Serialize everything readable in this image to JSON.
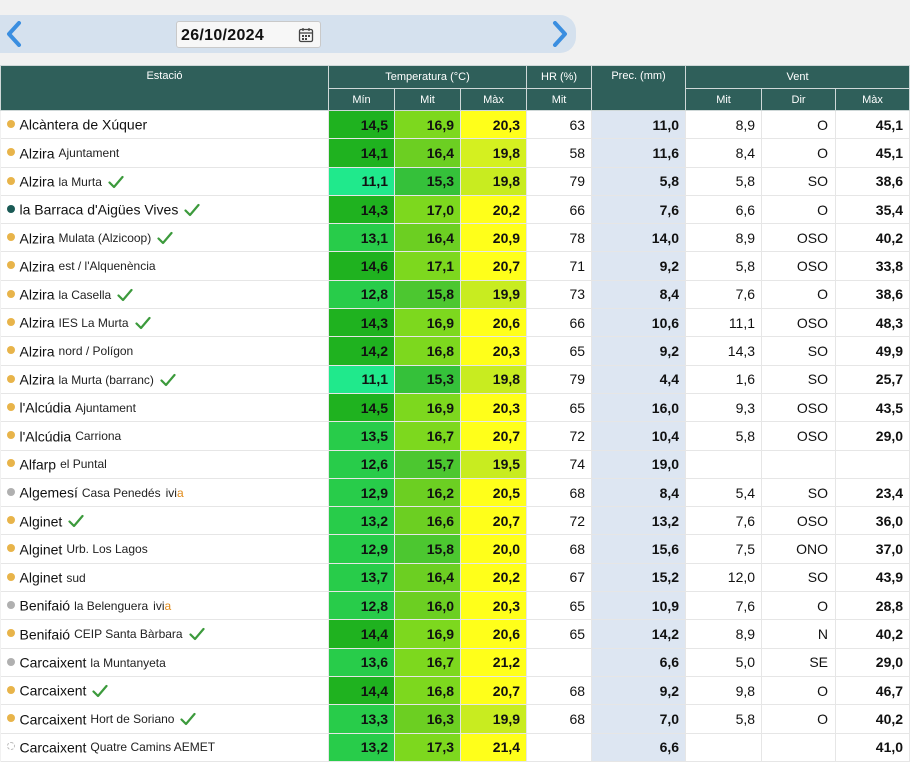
{
  "date_nav": {
    "date": "26/10/2024"
  },
  "colors": {
    "header_bg": "#2f5f5a",
    "precip_bg": "#dde6f2",
    "dot_orange": "#e8b44a",
    "dot_teal": "#1a5a55",
    "dot_gray": "#b0b0b0",
    "check": "#3c9a3c"
  },
  "headers": {
    "station": "Estació",
    "temperature": "Temperatura (°C)",
    "hr": "HR (%)",
    "prec": "Prec. (mm)",
    "wind": "Vent",
    "tmin": "Mín",
    "tmit": "Mit",
    "tmax": "Màx",
    "hr_mit": "Mit",
    "wind_mit": "Mit",
    "wind_dir": "Dir",
    "wind_max": "Màx"
  },
  "stations": [
    {
      "name": "Alcàntera de Xúquer",
      "sub": "",
      "dot": "orange",
      "check": false,
      "ivia": false,
      "tmin": "14,5",
      "tmit": "16,9",
      "tmax": "20,3",
      "cmin": "#1fb21f",
      "cmit": "#7dd81e",
      "cmax": "#ffff1a",
      "hr": "63",
      "prec": "11,0",
      "wmit": "8,9",
      "wdir": "O",
      "wmax": "45,1"
    },
    {
      "name": "Alzira",
      "sub": "Ajuntament",
      "dot": "orange",
      "check": false,
      "ivia": false,
      "tmin": "14,1",
      "tmit": "16,4",
      "tmax": "19,8",
      "cmin": "#1fb21f",
      "cmit": "#6ccf22",
      "cmax": "#d4f020",
      "hr": "58",
      "prec": "11,6",
      "wmit": "8,4",
      "wdir": "O",
      "wmax": "45,1"
    },
    {
      "name": "Alzira",
      "sub": "la Murta",
      "dot": "orange",
      "check": true,
      "ivia": false,
      "tmin": "11,1",
      "tmit": "15,3",
      "tmax": "19,8",
      "cmin": "#20e98c",
      "cmit": "#35c13a",
      "cmax": "#c8ec20",
      "hr": "79",
      "prec": "5,8",
      "wmit": "5,8",
      "wdir": "SO",
      "wmax": "38,6"
    },
    {
      "name": "la Barraca d'Aigües Vives",
      "sub": "",
      "dot": "teal",
      "check": true,
      "ivia": false,
      "tmin": "14,3",
      "tmit": "17,0",
      "tmax": "20,2",
      "cmin": "#1fb21f",
      "cmit": "#7dd81e",
      "cmax": "#ffff1a",
      "hr": "66",
      "prec": "7,6",
      "wmit": "6,6",
      "wdir": "O",
      "wmax": "35,4"
    },
    {
      "name": "Alzira",
      "sub": "Mulata (Alzicoop)",
      "dot": "orange",
      "check": true,
      "ivia": false,
      "tmin": "13,1",
      "tmit": "16,4",
      "tmax": "20,9",
      "cmin": "#28cc4a",
      "cmit": "#6ccf22",
      "cmax": "#ffff1a",
      "hr": "78",
      "prec": "14,0",
      "wmit": "8,9",
      "wdir": "OSO",
      "wmax": "40,2"
    },
    {
      "name": "Alzira",
      "sub": "est / l'Alquenència",
      "dot": "orange",
      "check": false,
      "ivia": false,
      "tmin": "14,6",
      "tmit": "17,1",
      "tmax": "20,7",
      "cmin": "#1fb21f",
      "cmit": "#7dd81e",
      "cmax": "#ffff1a",
      "hr": "71",
      "prec": "9,2",
      "wmit": "5,8",
      "wdir": "OSO",
      "wmax": "33,8"
    },
    {
      "name": "Alzira",
      "sub": "la Casella",
      "dot": "orange",
      "check": true,
      "ivia": false,
      "tmin": "12,8",
      "tmit": "15,8",
      "tmax": "19,9",
      "cmin": "#28cc4a",
      "cmit": "#4cc730",
      "cmax": "#c8ec20",
      "hr": "73",
      "prec": "8,4",
      "wmit": "7,6",
      "wdir": "O",
      "wmax": "38,6"
    },
    {
      "name": "Alzira",
      "sub": "IES La Murta",
      "dot": "orange",
      "check": true,
      "ivia": false,
      "tmin": "14,3",
      "tmit": "16,9",
      "tmax": "20,6",
      "cmin": "#1fb21f",
      "cmit": "#7dd81e",
      "cmax": "#ffff1a",
      "hr": "66",
      "prec": "10,6",
      "wmit": "11,1",
      "wdir": "OSO",
      "wmax": "48,3"
    },
    {
      "name": "Alzira",
      "sub": "nord / Polígon",
      "dot": "orange",
      "check": false,
      "ivia": false,
      "tmin": "14,2",
      "tmit": "16,8",
      "tmax": "20,3",
      "cmin": "#1fb21f",
      "cmit": "#7dd81e",
      "cmax": "#ffff1a",
      "hr": "65",
      "prec": "9,2",
      "wmit": "14,3",
      "wdir": "SO",
      "wmax": "49,9"
    },
    {
      "name": "Alzira",
      "sub": "la Murta (barranc)",
      "dot": "orange",
      "check": true,
      "ivia": false,
      "tmin": "11,1",
      "tmit": "15,3",
      "tmax": "19,8",
      "cmin": "#20e98c",
      "cmit": "#35c13a",
      "cmax": "#c8ec20",
      "hr": "79",
      "prec": "4,4",
      "wmit": "1,6",
      "wdir": "SO",
      "wmax": "25,7"
    },
    {
      "name": "l'Alcúdia",
      "sub": "Ajuntament",
      "dot": "orange",
      "check": false,
      "ivia": false,
      "tmin": "14,5",
      "tmit": "16,9",
      "tmax": "20,3",
      "cmin": "#1fb21f",
      "cmit": "#7dd81e",
      "cmax": "#ffff1a",
      "hr": "65",
      "prec": "16,0",
      "wmit": "9,3",
      "wdir": "OSO",
      "wmax": "43,5"
    },
    {
      "name": "l'Alcúdia",
      "sub": "Carriona",
      "dot": "orange",
      "check": false,
      "ivia": false,
      "tmin": "13,5",
      "tmit": "16,7",
      "tmax": "20,7",
      "cmin": "#28cc4a",
      "cmit": "#7dd81e",
      "cmax": "#ffff1a",
      "hr": "72",
      "prec": "10,4",
      "wmit": "5,8",
      "wdir": "OSO",
      "wmax": "29,0"
    },
    {
      "name": "Alfarp",
      "sub": "el Puntal",
      "dot": "orange",
      "check": false,
      "ivia": false,
      "tmin": "12,6",
      "tmit": "15,7",
      "tmax": "19,5",
      "cmin": "#28cc4a",
      "cmit": "#4cc730",
      "cmax": "#c8ec20",
      "hr": "74",
      "prec": "19,0",
      "wmit": "",
      "wdir": "",
      "wmax": ""
    },
    {
      "name": "Algemesí",
      "sub": "Casa Penedés",
      "dot": "gray",
      "check": false,
      "ivia": true,
      "tmin": "12,9",
      "tmit": "16,2",
      "tmax": "20,5",
      "cmin": "#28cc4a",
      "cmit": "#6ccf22",
      "cmax": "#ffff1a",
      "hr": "68",
      "prec": "8,4",
      "wmit": "5,4",
      "wdir": "SO",
      "wmax": "23,4"
    },
    {
      "name": "Alginet",
      "sub": "",
      "dot": "orange",
      "check": true,
      "ivia": false,
      "tmin": "13,2",
      "tmit": "16,6",
      "tmax": "20,7",
      "cmin": "#28cc4a",
      "cmit": "#6ccf22",
      "cmax": "#ffff1a",
      "hr": "72",
      "prec": "13,2",
      "wmit": "7,6",
      "wdir": "OSO",
      "wmax": "36,0"
    },
    {
      "name": "Alginet",
      "sub": "Urb. Los Lagos",
      "dot": "orange",
      "check": false,
      "ivia": false,
      "tmin": "12,9",
      "tmit": "15,8",
      "tmax": "20,0",
      "cmin": "#28cc4a",
      "cmit": "#4cc730",
      "cmax": "#ffff1a",
      "hr": "68",
      "prec": "15,6",
      "wmit": "7,5",
      "wdir": "ONO",
      "wmax": "37,0"
    },
    {
      "name": "Alginet",
      "sub": "sud",
      "dot": "orange",
      "check": false,
      "ivia": false,
      "tmin": "13,7",
      "tmit": "16,4",
      "tmax": "20,2",
      "cmin": "#28cc4a",
      "cmit": "#6ccf22",
      "cmax": "#ffff1a",
      "hr": "67",
      "prec": "15,2",
      "wmit": "12,0",
      "wdir": "SO",
      "wmax": "43,9"
    },
    {
      "name": "Benifaió",
      "sub": "la Belenguera",
      "dot": "gray",
      "check": false,
      "ivia": true,
      "tmin": "12,8",
      "tmit": "16,0",
      "tmax": "20,3",
      "cmin": "#28cc4a",
      "cmit": "#6ccf22",
      "cmax": "#ffff1a",
      "hr": "65",
      "prec": "10,9",
      "wmit": "7,6",
      "wdir": "O",
      "wmax": "28,8"
    },
    {
      "name": "Benifaió",
      "sub": "CEIP Santa Bàrbara",
      "dot": "orange",
      "check": true,
      "ivia": false,
      "tmin": "14,4",
      "tmit": "16,9",
      "tmax": "20,6",
      "cmin": "#1fb21f",
      "cmit": "#7dd81e",
      "cmax": "#ffff1a",
      "hr": "65",
      "prec": "14,2",
      "wmit": "8,9",
      "wdir": "N",
      "wmax": "40,2"
    },
    {
      "name": "Carcaixent",
      "sub": "la Muntanyeta",
      "dot": "gray",
      "check": false,
      "ivia": false,
      "tmin": "13,6",
      "tmit": "16,7",
      "tmax": "21,2",
      "cmin": "#28cc4a",
      "cmit": "#7dd81e",
      "cmax": "#ffff1a",
      "hr": "",
      "prec": "6,6",
      "wmit": "5,0",
      "wdir": "SE",
      "wmax": "29,0"
    },
    {
      "name": "Carcaixent",
      "sub": "",
      "dot": "orange",
      "check": true,
      "ivia": false,
      "tmin": "14,4",
      "tmit": "16,8",
      "tmax": "20,7",
      "cmin": "#1fb21f",
      "cmit": "#7dd81e",
      "cmax": "#ffff1a",
      "hr": "68",
      "prec": "9,2",
      "wmit": "9,8",
      "wdir": "O",
      "wmax": "46,7"
    },
    {
      "name": "Carcaixent",
      "sub": "Hort de Soriano",
      "dot": "orange",
      "check": true,
      "ivia": false,
      "tmin": "13,3",
      "tmit": "16,3",
      "tmax": "19,9",
      "cmin": "#28cc4a",
      "cmit": "#6ccf22",
      "cmax": "#c8ec20",
      "hr": "68",
      "prec": "7,0",
      "wmit": "5,8",
      "wdir": "O",
      "wmax": "40,2"
    },
    {
      "name": "Carcaixent",
      "sub": "Quatre Camins AEMET",
      "dot": "hollow",
      "check": false,
      "ivia": false,
      "tmin": "13,2",
      "tmit": "17,3",
      "tmax": "21,4",
      "cmin": "#28cc4a",
      "cmit": "#7dd81e",
      "cmax": "#ffff1a",
      "hr": "",
      "prec": "6,6",
      "wmit": "",
      "wdir": "",
      "wmax": "41,0"
    }
  ]
}
